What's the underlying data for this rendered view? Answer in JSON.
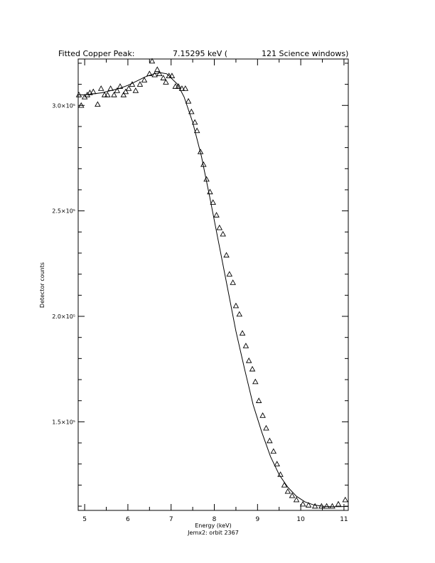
{
  "header": {
    "left": "Fitted Copper Peak:",
    "middle": "7.15295 keV (",
    "right": "121 Science windows)"
  },
  "footer": {
    "caption": "Jemx2: orbit 2367"
  },
  "chart_data": {
    "type": "scatter",
    "xlabel": "Energy (keV)",
    "ylabel": "Detector counts",
    "xlim": [
      4.85,
      11.1
    ],
    "ylim": [
      108000,
      322000
    ],
    "x_ticks": [
      5,
      6,
      7,
      8,
      9,
      10,
      11
    ],
    "x_tick_labels": [
      "5",
      "6",
      "7",
      "8",
      "9",
      "10",
      "11"
    ],
    "y_ticks": [
      150000,
      200000,
      250000,
      300000
    ],
    "y_tick_labels": [
      "1.5×10⁵",
      "2.0×10⁵",
      "2.5×10⁵",
      "3.0×10⁵"
    ],
    "grid": false,
    "series": [
      {
        "kind": "points",
        "marker": "triangle-open",
        "x": [
          4.82,
          4.92,
          5.0,
          5.06,
          5.12,
          5.2,
          5.3,
          5.38,
          5.46,
          5.53,
          5.6,
          5.68,
          5.75,
          5.82,
          5.9,
          5.95,
          6.02,
          6.1,
          6.18,
          6.28,
          6.38,
          6.5,
          6.56,
          6.62,
          6.68,
          6.73,
          6.82,
          6.88,
          6.95,
          7.02,
          7.1,
          7.17,
          7.25,
          7.33,
          7.4,
          7.47,
          7.55,
          7.6,
          7.68,
          7.75,
          7.82,
          7.9,
          7.97,
          8.05,
          8.12,
          8.2,
          8.28,
          8.35,
          8.43,
          8.5,
          8.58,
          8.65,
          8.73,
          8.8,
          8.88,
          8.95,
          9.03,
          9.12,
          9.2,
          9.28,
          9.37,
          9.45,
          9.53,
          9.62,
          9.7,
          9.8,
          9.9,
          10.05,
          10.18,
          10.33,
          10.48,
          10.6,
          10.73,
          10.87,
          11.03
        ],
        "y": [
          305000,
          300000,
          304000,
          305000,
          306000,
          306500,
          300500,
          308000,
          305000,
          305000,
          308000,
          305000,
          307000,
          309000,
          305000,
          306500,
          308000,
          310000,
          307000,
          310000,
          312000,
          315000,
          321000,
          314500,
          317000,
          315000,
          313000,
          311000,
          314000,
          314000,
          309000,
          309000,
          308000,
          308000,
          302000,
          297000,
          292000,
          288000,
          278000,
          272000,
          265000,
          259000,
          254000,
          248000,
          242000,
          239000,
          229000,
          220000,
          216000,
          205000,
          201000,
          192000,
          186000,
          179000,
          175000,
          169000,
          160000,
          153000,
          147000,
          141000,
          136000,
          130000,
          125000,
          120000,
          117000,
          115000,
          113000,
          111000,
          110500,
          110000,
          110000,
          110000,
          110000,
          111000,
          113000
        ]
      },
      {
        "kind": "line",
        "x": [
          4.85,
          5.0,
          5.2,
          5.4,
          5.6,
          5.8,
          6.0,
          6.2,
          6.4,
          6.6,
          6.75,
          6.9,
          7.0,
          7.15,
          7.3,
          7.5,
          7.7,
          7.9,
          8.1,
          8.3,
          8.5,
          8.7,
          8.9,
          9.1,
          9.3,
          9.5,
          9.7,
          9.9,
          10.1,
          10.3,
          10.5,
          10.7,
          10.9,
          11.1
        ],
        "y": [
          305000,
          305000,
          305500,
          306000,
          307000,
          308000,
          309500,
          311500,
          313500,
          315000,
          315500,
          315000,
          313000,
          310000,
          304000,
          292000,
          276000,
          256000,
          235000,
          214000,
          193000,
          175000,
          158000,
          145000,
          133500,
          125000,
          119000,
          114700,
          112000,
          110600,
          110000,
          109800,
          109800,
          109900
        ]
      }
    ]
  }
}
